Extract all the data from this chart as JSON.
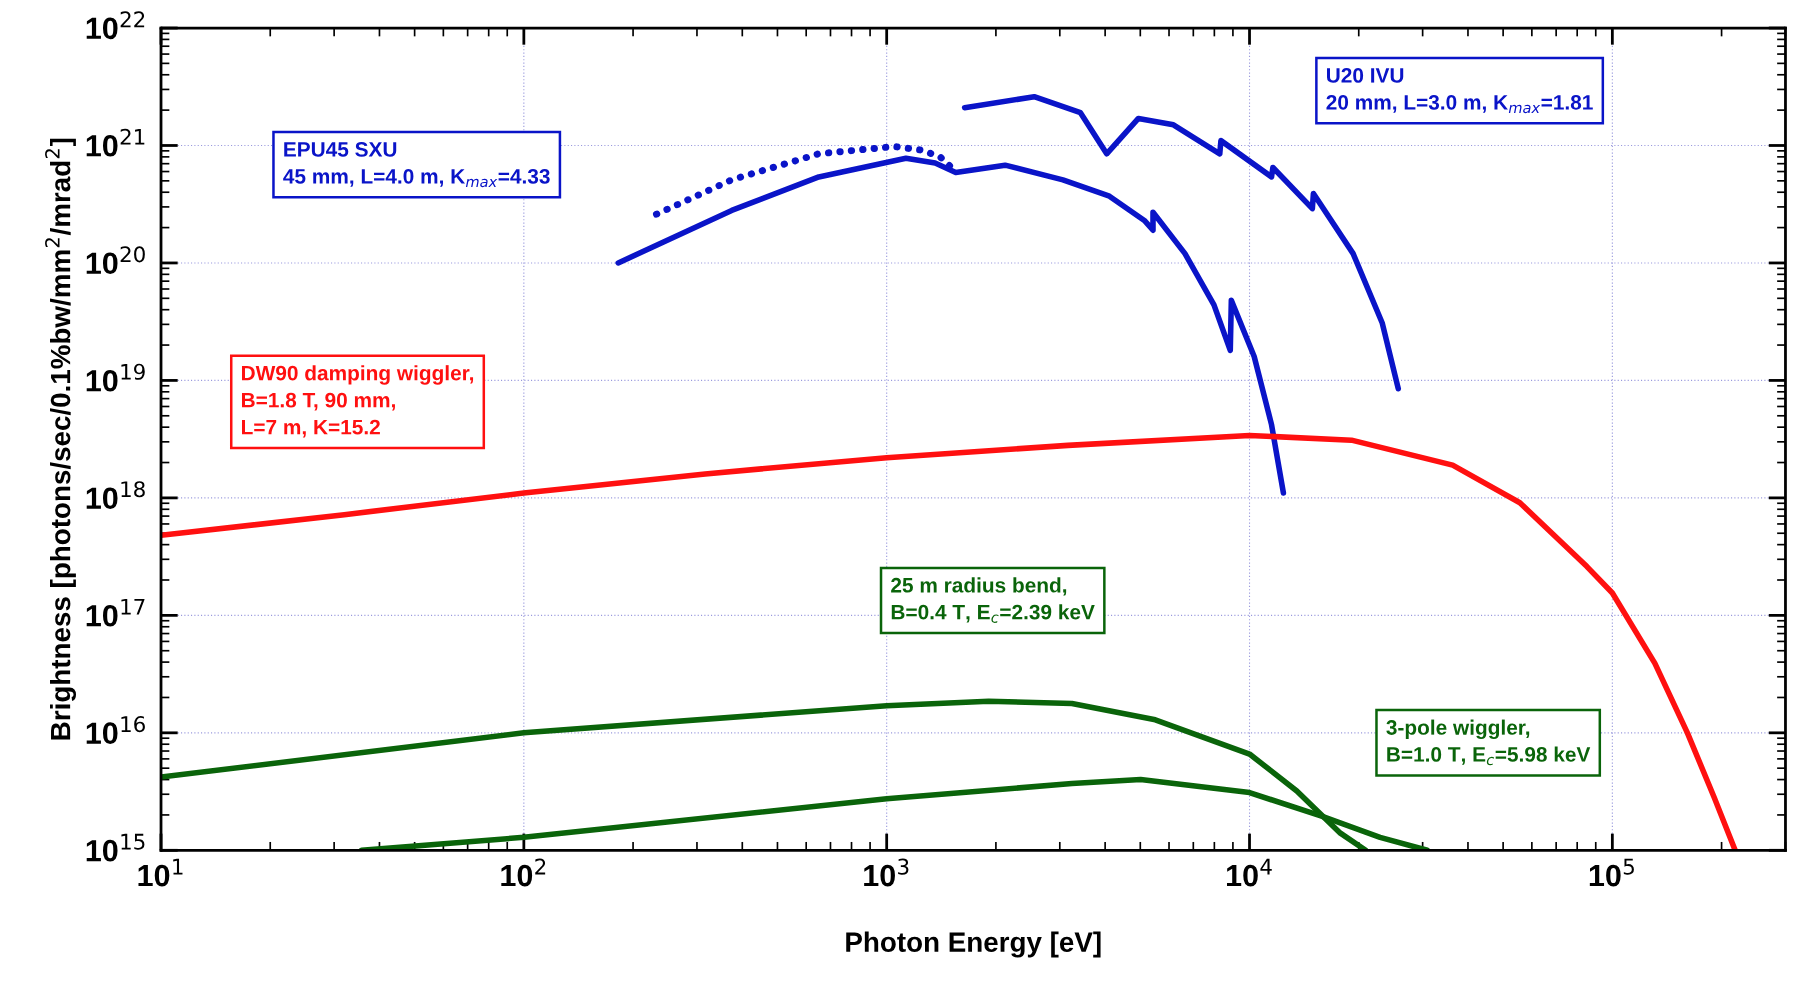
{
  "chart_data": {
    "type": "line",
    "xlabel": "Photon Energy [eV]",
    "ylabel": "Brightness [photons/sec/0.1%bw/mm$^{2}$/mrad$^{2}$]",
    "log": "xy",
    "grid": true,
    "legend": false,
    "xlim": [
      10,
      300000
    ],
    "ylim": [
      1000000000000000.0,
      1e+22
    ],
    "xticks": [
      {
        "value": 10,
        "label": "10$^{1}$"
      },
      {
        "value": 100,
        "label": "10$^{2}$"
      },
      {
        "value": 1000,
        "label": "10$^{3}$"
      },
      {
        "value": 10000,
        "label": "10$^{4}$"
      },
      {
        "value": 100000,
        "label": "10$^{5}$"
      }
    ],
    "yticks": [
      {
        "value": 1000000000000000.0,
        "label": "10$^{15}$"
      },
      {
        "value": 1e+16,
        "label": "10$^{16}$"
      },
      {
        "value": 1e+17,
        "label": "10$^{17}$"
      },
      {
        "value": 1e+18,
        "label": "10$^{18}$"
      },
      {
        "value": 1e+19,
        "label": "10$^{19}$"
      },
      {
        "value": 1e+20,
        "label": "10$^{20}$"
      },
      {
        "value": 1e+21,
        "label": "10$^{21}$"
      },
      {
        "value": 1e+22,
        "label": "10$^{22}$"
      }
    ],
    "series": [
      {
        "name": "EPU45 SXU\n45 mm, L=4.0 m, K$_{max}$=4.33",
        "color": "#0a14c8",
        "line_style": "solid",
        "x": [
          182,
          374,
          650,
          1130,
          1360,
          1550,
          2120,
          3060,
          4110,
          5130,
          5420,
          5420,
          6640,
          7980,
          8850,
          8910,
          10300,
          11500,
          12400
        ],
        "values": [
          1e+20,
          2.8e+20,
          5.4e+20,
          7.8e+20,
          7.1e+20,
          5.9e+20,
          6.8e+20,
          5.1e+20,
          3.7e+20,
          2.3e+20,
          1.9e+20,
          2.7e+20,
          1.2e+20,
          4.4e+19,
          1.8e+19,
          4.8e+19,
          1.6e+19,
          4.2e+18,
          1.1e+18
        ]
      },
      {
        "color": "#0a14c8",
        "line_style": "dotted",
        "x": [
          232,
          374,
          650,
          1050,
          1260,
          1410,
          1550
        ],
        "values": [
          2.6e+20,
          5.1e+20,
          8.5e+20,
          9.8e+20,
          9.1e+20,
          7.9e+20,
          6e+20
        ]
      },
      {
        "name": "U20 IVU\n20 mm, L=3.0 m, K$_{max}$=1.81",
        "color": "#0a14c8",
        "line_style": "solid",
        "x": [
          1640,
          2550,
          3420,
          4040,
          4940,
          6170,
          8280,
          8340,
          11500,
          11600,
          14900,
          15000,
          19300,
          23200,
          25700
        ],
        "values": [
          2.1e+21,
          2.6e+21,
          1.9e+21,
          8.5e+20,
          1.7e+21,
          1.5e+21,
          8.5e+20,
          1.1e+21,
          5.4e+20,
          6.5e+20,
          2.9e+20,
          3.9e+20,
          1.2e+20,
          3.1e+19,
          8.5e+18
        ]
      },
      {
        "name": "DW90 damping wiggler,\nB=1.8 T, 90 mm,\nL=7 m, K=15.2",
        "color": "#ff1010",
        "line_style": "solid",
        "x": [
          10,
          32,
          100,
          316,
          1000,
          3160,
          10000,
          19100,
          36300,
          55600,
          85100,
          100000,
          131000,
          161000,
          191000,
          218000
        ],
        "values": [
          4.8e+17,
          7.2e+17,
          1.1e+18,
          1.6e+18,
          2.2e+18,
          2.8e+18,
          3.4e+18,
          3.1e+18,
          1.9e+18,
          9.1e+17,
          2.6e+17,
          1.55e+17,
          3.9e+16,
          1e+16,
          2800000000000000.0,
          1000000000000000.0
        ]
      },
      {
        "name": "25 m radius bend,\nB=0.4 T, E$_{c}$=2.39 keV",
        "color": "#0a640a",
        "line_style": "solid",
        "x": [
          10,
          100,
          1000,
          1910,
          3240,
          5500,
          10000,
          13500,
          17800,
          20900
        ],
        "values": [
          4200000000000000.0,
          1e+16,
          1.7e+16,
          1.86e+16,
          1.78e+16,
          1.29e+16,
          6600000000000000.0,
          3200000000000000.0,
          1400000000000000.0,
          1000000000000000.0
        ]
      },
      {
        "name": "3-pole wiggler,\nB=1.0 T, E$_{c}$=5.98 keV",
        "color": "#0a640a",
        "line_style": "solid",
        "x": [
          35.7,
          100,
          1000,
          3240,
          5010,
          10000,
          15800,
          22900,
          30900
        ],
        "values": [
          1000000000000000.0,
          1290000000000000.0,
          2750000000000000.0,
          3700000000000000.0,
          4000000000000000.0,
          3100000000000000.0,
          1950000000000000.0,
          1290000000000000.0,
          1000000000000000.0
        ]
      }
    ]
  }
}
